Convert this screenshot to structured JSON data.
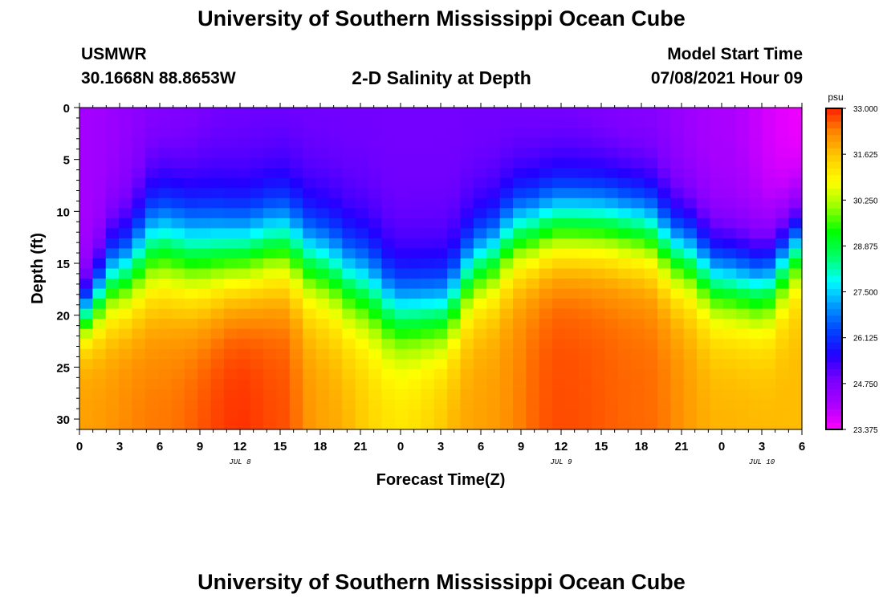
{
  "header": {
    "title": "University of Southern Mississippi Ocean Cube",
    "station": "USMWR",
    "coords": "30.1668N  88.8653W",
    "subtitle": "2-D Salinity at Depth",
    "start_label": "Model Start Time",
    "start_value": "07/08/2021 Hour 09"
  },
  "footer": {
    "title": "University of Southern Mississippi Ocean Cube"
  },
  "colors": {
    "background": "#ffffff",
    "text": "#000000",
    "scale": [
      "#ff00ff",
      "#aa00ff",
      "#7a00ff",
      "#2200ff",
      "#0044ff",
      "#0099ff",
      "#00ffff",
      "#00ff66",
      "#00ff00",
      "#99ff00",
      "#ffff00",
      "#ffcc00",
      "#ff8800",
      "#ff2200"
    ]
  },
  "chart_data": {
    "type": "heatmap",
    "title": "2-D Salinity at Depth",
    "xlabel": "Forecast Time(Z)",
    "ylabel": "Depth (ft)",
    "x_tick_labels": [
      "0",
      "3",
      "6",
      "9",
      "12",
      "15",
      "18",
      "21",
      "0",
      "3",
      "6",
      "9",
      "12",
      "15",
      "18",
      "21",
      "0",
      "3",
      "6"
    ],
    "x_range_hours": [
      0,
      54
    ],
    "date_labels": [
      {
        "text": "JUL 8",
        "hour": 12
      },
      {
        "text": "JUL 9",
        "hour": 36
      },
      {
        "text": "JUL 10",
        "hour": 51
      }
    ],
    "y_ticks": [
      0,
      5,
      10,
      15,
      20,
      25,
      30
    ],
    "ylim": [
      31,
      0
    ],
    "colorbar": {
      "unit": "psu",
      "min": 23.375,
      "max": 33.0,
      "tick_labels": [
        "33.000",
        "31.625",
        "30.250",
        "28.875",
        "27.500",
        "26.125",
        "24.750",
        "23.375"
      ]
    },
    "grid": {
      "n_time": 55,
      "n_depth": 32
    },
    "halocline_depth_ft": {
      "hours": [
        0,
        3,
        6,
        9,
        12,
        15,
        18,
        21,
        24,
        27,
        30,
        33,
        36,
        39,
        42,
        45,
        48,
        51,
        54
      ],
      "values": [
        20,
        16,
        13,
        14,
        14,
        13,
        15,
        17,
        19.5,
        19.5,
        15,
        12,
        11,
        11,
        11.5,
        14,
        16.5,
        17,
        13
      ]
    },
    "gradient_width_ft": {
      "hours": [
        0,
        3,
        6,
        9,
        12,
        15,
        18,
        21,
        24,
        27,
        30,
        33,
        36,
        39,
        42,
        45,
        48,
        51,
        54
      ],
      "values": [
        5,
        8,
        10,
        10,
        9,
        9,
        9,
        9,
        8,
        8,
        8,
        8,
        8,
        8,
        8,
        8,
        8,
        8,
        7
      ]
    },
    "surface_salinity": {
      "hours": [
        0,
        6,
        12,
        18,
        24,
        30,
        36,
        42,
        48,
        54
      ],
      "values": [
        24.2,
        24.6,
        24.9,
        24.9,
        24.9,
        24.9,
        24.8,
        24.6,
        24.1,
        23.5
      ]
    },
    "bottom_salinity": {
      "hours": [
        0,
        6,
        12,
        15,
        18,
        24,
        30,
        36,
        42,
        48,
        54
      ],
      "values": [
        32.0,
        32.4,
        32.9,
        32.7,
        32.0,
        31.2,
        32.0,
        32.7,
        32.5,
        31.8,
        31.7
      ]
    }
  }
}
